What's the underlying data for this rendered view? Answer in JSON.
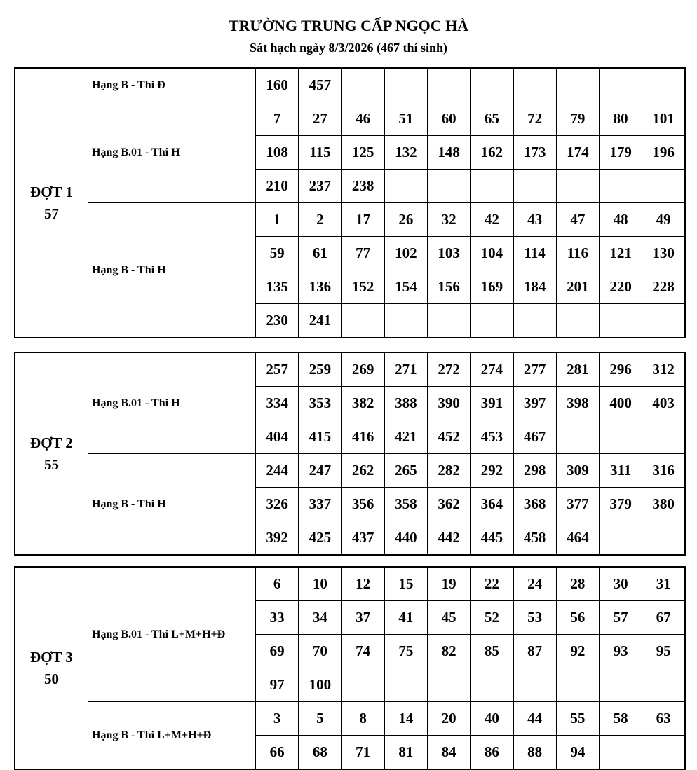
{
  "header": {
    "title": "TRƯỜNG TRUNG CẤP NGỌC HÀ",
    "subtitle": "Sát hạch ngày 8/3/2026 (467 thí sinh)"
  },
  "batches": [
    {
      "name": "ĐỢT 1",
      "count": "57",
      "groups": [
        {
          "label": "Hạng B - Thi Đ",
          "numbers": [
            "160",
            "457"
          ]
        },
        {
          "label": "Hạng B.01 - Thi H",
          "numbers": [
            "7",
            "27",
            "46",
            "51",
            "60",
            "65",
            "72",
            "79",
            "80",
            "101",
            "108",
            "115",
            "125",
            "132",
            "148",
            "162",
            "173",
            "174",
            "179",
            "196",
            "210",
            "237",
            "238"
          ]
        },
        {
          "label": "Hạng B - Thi H",
          "numbers": [
            "1",
            "2",
            "17",
            "26",
            "32",
            "42",
            "43",
            "47",
            "48",
            "49",
            "59",
            "61",
            "77",
            "102",
            "103",
            "104",
            "114",
            "116",
            "121",
            "130",
            "135",
            "136",
            "152",
            "154",
            "156",
            "169",
            "184",
            "201",
            "220",
            "228",
            "230",
            "241"
          ]
        }
      ]
    },
    {
      "name": "ĐỢT 2",
      "count": "55",
      "groups": [
        {
          "label": "Hạng B.01 - Thi H",
          "numbers": [
            "257",
            "259",
            "269",
            "271",
            "272",
            "274",
            "277",
            "281",
            "296",
            "312",
            "334",
            "353",
            "382",
            "388",
            "390",
            "391",
            "397",
            "398",
            "400",
            "403",
            "404",
            "415",
            "416",
            "421",
            "452",
            "453",
            "467"
          ]
        },
        {
          "label": "Hạng B - Thi H",
          "numbers": [
            "244",
            "247",
            "262",
            "265",
            "282",
            "292",
            "298",
            "309",
            "311",
            "316",
            "326",
            "337",
            "356",
            "358",
            "362",
            "364",
            "368",
            "377",
            "379",
            "380",
            "392",
            "425",
            "437",
            "440",
            "442",
            "445",
            "458",
            "464"
          ]
        }
      ]
    },
    {
      "name": "ĐỢT 3",
      "count": "50",
      "groups": [
        {
          "label": "Hạng B.01 - Thi L+M+H+Đ",
          "numbers": [
            "6",
            "10",
            "12",
            "15",
            "19",
            "22",
            "24",
            "28",
            "30",
            "31",
            "33",
            "34",
            "37",
            "41",
            "45",
            "52",
            "53",
            "56",
            "57",
            "67",
            "69",
            "70",
            "74",
            "75",
            "82",
            "85",
            "87",
            "92",
            "93",
            "95",
            "97",
            "100"
          ]
        },
        {
          "label": "Hạng B - Thi L+M+H+Đ",
          "numbers": [
            "3",
            "5",
            "8",
            "14",
            "20",
            "40",
            "44",
            "55",
            "58",
            "63",
            "66",
            "68",
            "71",
            "81",
            "84",
            "86",
            "88",
            "94"
          ]
        }
      ]
    }
  ]
}
